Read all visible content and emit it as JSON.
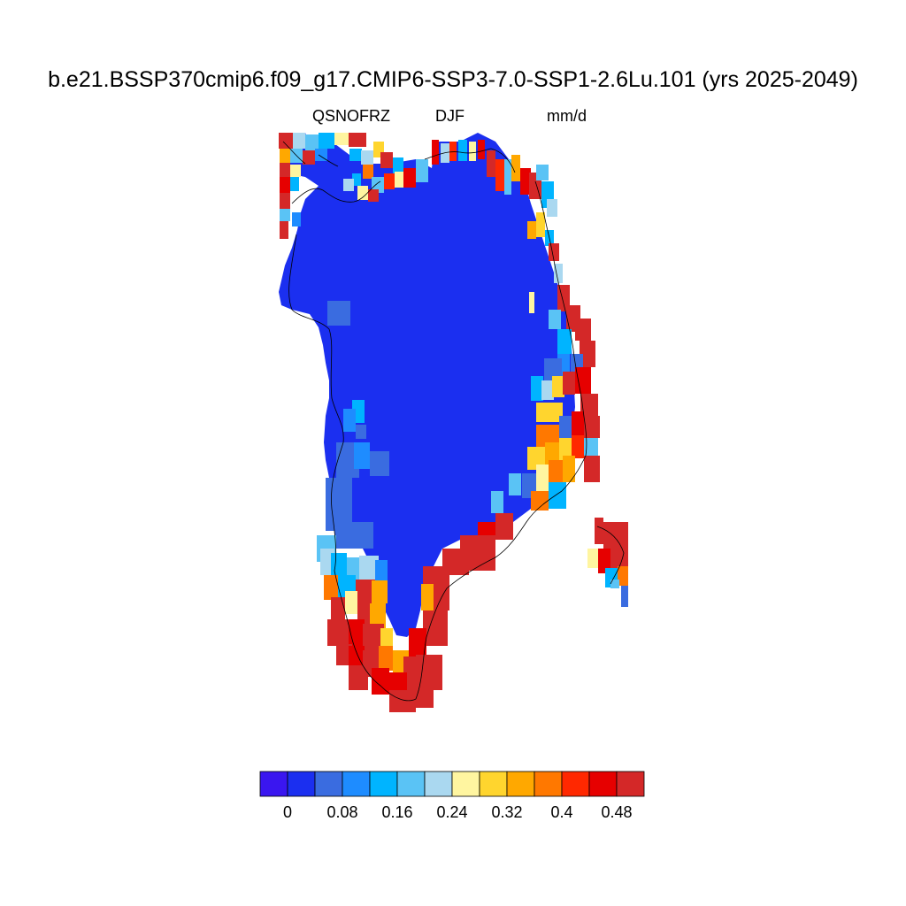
{
  "title": "b.e21.BSSP370cmip6.f09_g17.CMIP6-SSP3-7.0-SSP1-2.6Lu.101 (yrs 2025-2049)",
  "variable": "QSNOFRZ",
  "season": "DJF",
  "units": "mm/d",
  "colorbar": {
    "colors": [
      "#3a16f0",
      "#1b2ff0",
      "#3a6ce0",
      "#1e8cff",
      "#00b4ff",
      "#5ac3f5",
      "#aad8f0",
      "#fff5a0",
      "#ffd52e",
      "#ffa800",
      "#ff7800",
      "#ff2800",
      "#e60000",
      "#d42828"
    ],
    "tick_labels": [
      "0",
      "0.08",
      "0.16",
      "0.24",
      "0.32",
      "0.4",
      "0.48"
    ]
  },
  "map_data": {
    "region": "Greenland",
    "field": "QSNOFRZ",
    "interior_value": "0",
    "high_values_region": "southern and southeastern coast",
    "colors": {
      "ice_sheet": "#1b2ff0",
      "coast_line": "#000000"
    }
  }
}
